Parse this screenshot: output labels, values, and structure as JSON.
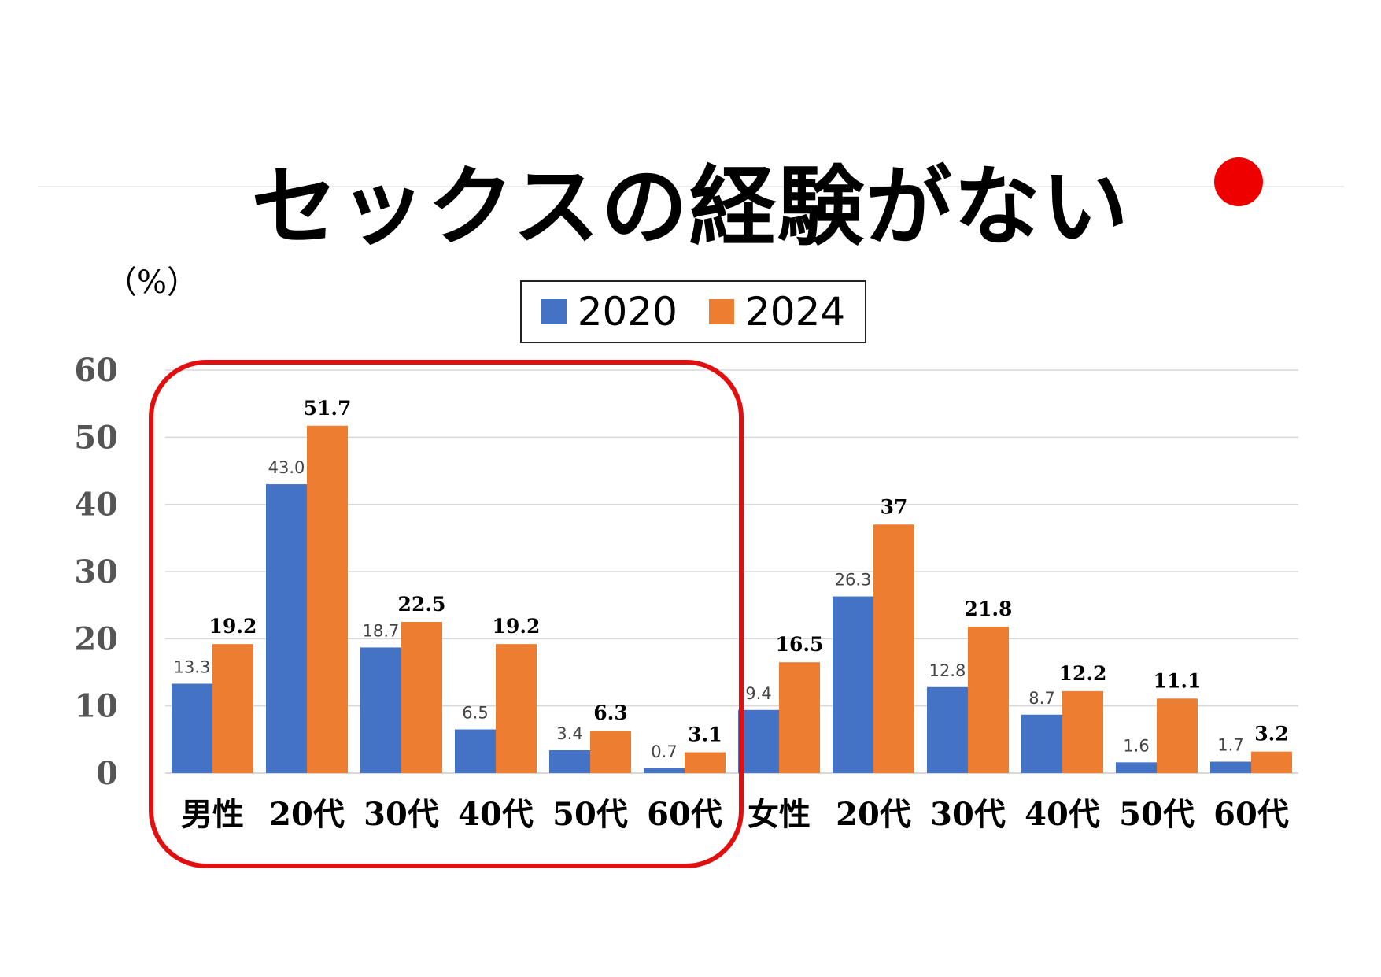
{
  "colors": {
    "series_2020": "#4472c4",
    "series_2024": "#ed7d31",
    "highlight_box": "#e01010",
    "red_dot": "#ee0000",
    "gridline": "#d9d9d9"
  },
  "title": "セックスの経験がない",
  "unit_label": "（%）",
  "legend": {
    "position": "top-center",
    "items": [
      {
        "label": "2020",
        "color": "#4472c4"
      },
      {
        "label": "2024",
        "color": "#ed7d31"
      }
    ]
  },
  "chart_data": {
    "type": "bar",
    "title": "セックスの経験がない",
    "ylabel": "（%）",
    "xlabel": "",
    "ylim": [
      0,
      60
    ],
    "yticks": [
      0,
      10,
      20,
      30,
      40,
      50,
      60
    ],
    "grid": true,
    "categories": [
      "男性",
      "20代",
      "30代",
      "40代",
      "50代",
      "60代",
      "女性",
      "20代",
      "30代",
      "40代",
      "50代",
      "60代"
    ],
    "series": [
      {
        "name": "2020",
        "values": [
          13.3,
          43.0,
          18.7,
          6.5,
          3.4,
          0.7,
          9.4,
          26.3,
          12.8,
          8.7,
          1.6,
          1.7
        ],
        "labels": [
          "13.3",
          "43.0",
          "18.7",
          "6.5",
          "3.4",
          "0.7",
          "9.4",
          "26.3",
          "12.8",
          "8.7",
          "1.6",
          "1.7"
        ]
      },
      {
        "name": "2024",
        "values": [
          19.2,
          51.7,
          22.5,
          19.2,
          6.3,
          3.1,
          16.5,
          37,
          21.8,
          12.2,
          11.1,
          3.2
        ],
        "labels": [
          "19.2",
          "51.7",
          "22.5",
          "19.2",
          "6.3",
          "3.1",
          "16.5",
          "37",
          "21.8",
          "12.2",
          "11.1",
          "3.2"
        ]
      }
    ],
    "highlight": "男性 – 60代"
  }
}
